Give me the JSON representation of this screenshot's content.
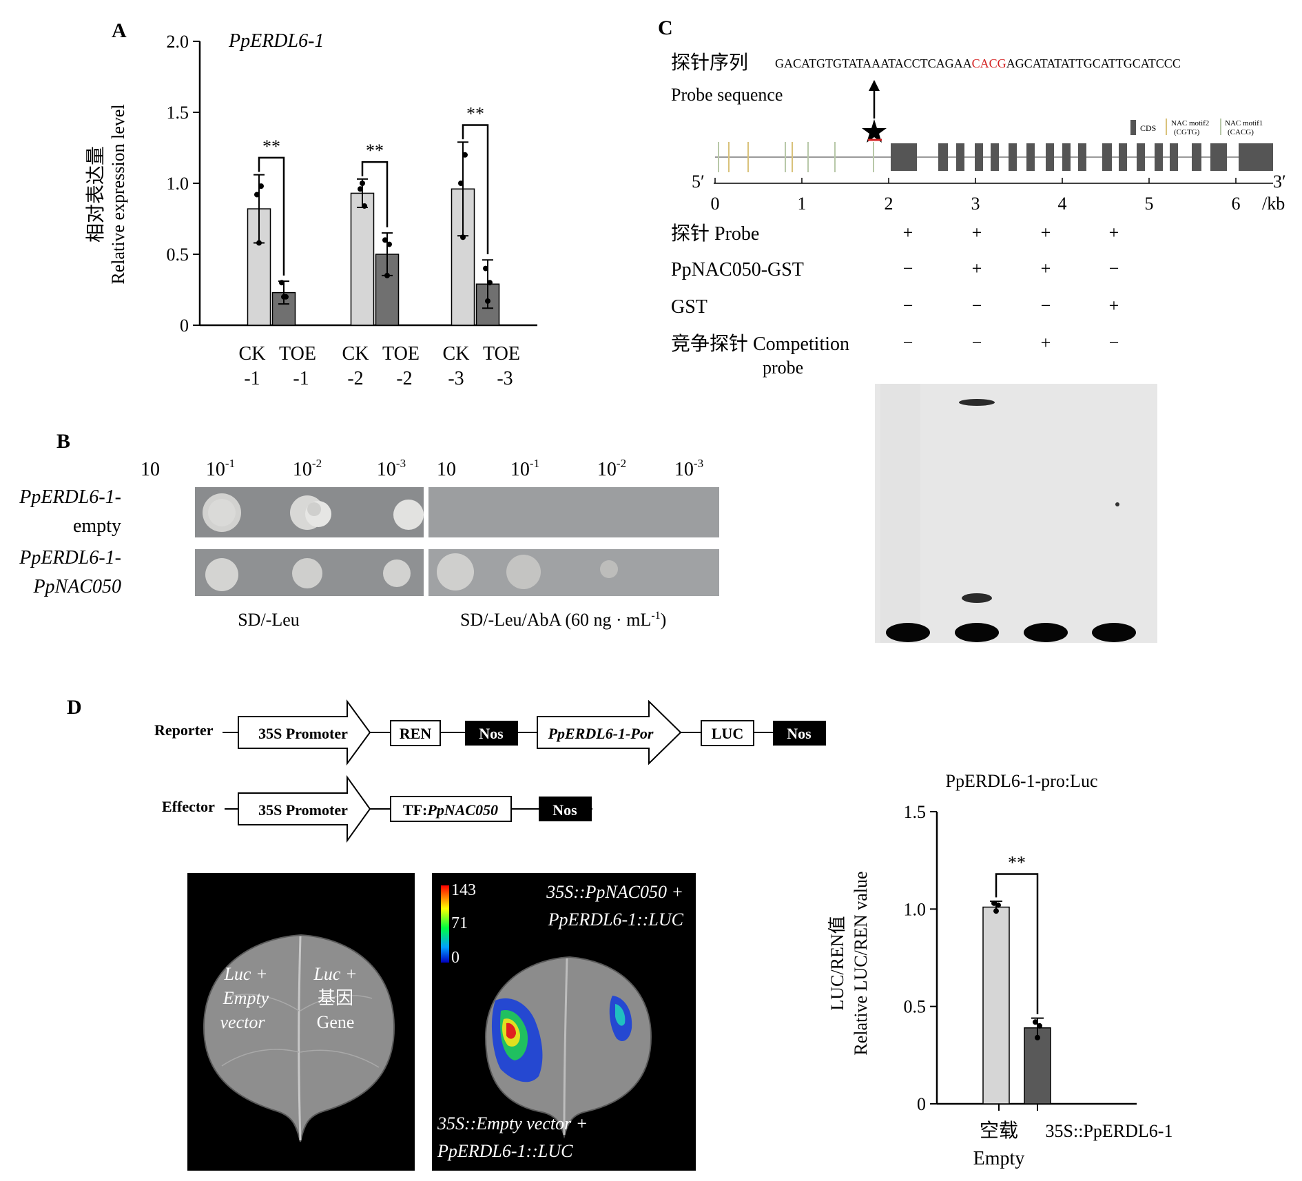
{
  "panels": {
    "A": {
      "letter": "A",
      "gene_label": "PpERDL6-1",
      "ylabel_cn": "相对表达量",
      "ylabel_en": "Relative expression level",
      "significance": "**",
      "groups": [
        {
          "ck_line1": "CK",
          "ck_line2": "-1",
          "toe_line1": "TOE",
          "toe_line2": "-1"
        },
        {
          "ck_line1": "CK",
          "ck_line2": "-2",
          "toe_line1": "TOE",
          "toe_line2": "-2"
        },
        {
          "ck_line1": "CK",
          "ck_line2": "-3",
          "toe_line1": "TOE",
          "toe_line2": "-3"
        }
      ]
    },
    "B": {
      "letter": "B",
      "dilutions_left": [
        "10",
        "10",
        "10",
        "10"
      ],
      "dilution_exps_left": [
        "",
        "-1",
        "-2",
        "-3"
      ],
      "dilutions_right": [
        "10",
        "10",
        "10",
        "10"
      ],
      "dilution_exps_right": [
        "",
        "-1",
        "-2",
        "-3"
      ],
      "row1_line1": "PpERDL6-1-",
      "row1_line2": "empty",
      "row2_line1": "PpERDL6-1-",
      "row2_line2": "PpNAC050",
      "medium_left": "SD/-Leu",
      "medium_right_main": "SD/-Leu/AbA (60 ng · mL",
      "medium_right_exp": "-1",
      "medium_right_close": ")"
    },
    "C": {
      "letter": "C",
      "probe_cn": "探针序列",
      "probe_en": "Probe sequence",
      "sequence_pre": "GACATGTGTATAAATACCTCAGAA",
      "sequence_motif": "CACG",
      "sequence_post": "AGCATATATTGCATTGCATCCC",
      "legend_cds": "CDS",
      "legend_motif2": "NAC motif2",
      "legend_motif2_seq": "(CGTG)",
      "legend_motif1": "NAC motif1",
      "legend_motif1_seq": "(CACG)",
      "end5": "5′",
      "end3": "3′",
      "scale_ticks": [
        "0",
        "1",
        "2",
        "3",
        "4",
        "5",
        "6"
      ],
      "scale_unit": "/kb",
      "rows": [
        {
          "label": "探针 Probe",
          "label2": "",
          "signs": [
            "+",
            "+",
            "+",
            "+"
          ]
        },
        {
          "label": "PpNAC050-GST",
          "label2": "",
          "signs": [
            "−",
            "+",
            "+",
            "−"
          ]
        },
        {
          "label": "GST",
          "label2": "",
          "signs": [
            "−",
            "−",
            "−",
            "+"
          ]
        },
        {
          "label": "竞争探针 Competition",
          "label2": "probe",
          "signs": [
            "−",
            "−",
            "+",
            "−"
          ]
        }
      ]
    },
    "D": {
      "letter": "D",
      "reporter_label": "Reporter",
      "effector_label": "Effector",
      "promoter": "35S Promoter",
      "ren": "REN",
      "nos": "Nos",
      "ppr_promoter": "PpERDL6-1-Por",
      "luc": "LUC",
      "tf_prefix": "TF:",
      "tf_name": "PpNAC050",
      "leaf1_left_l1": "Luc +",
      "leaf1_left_l2": "Empty",
      "leaf1_left_l3": "vector",
      "leaf1_right_l1": "Luc +",
      "leaf1_right_l2": "基因",
      "leaf1_right_l3": "Gene",
      "scale_max": "143",
      "scale_mid": "71",
      "scale_min": "0",
      "leaf2_top_l1": "35S::PpNAC050 +",
      "leaf2_top_l2": "PpERDL6-1::LUC",
      "leaf2_bottom_l1": "35S::Empty vector +",
      "leaf2_bottom_l2": "PpERDL6-1::LUC",
      "chart_title": "PpERDL6-1-pro:Luc",
      "ylabel_cn": "LUC/REN值",
      "ylabel_en": "Relative LUC/REN value",
      "significance": "**",
      "cat1_cn": "空载",
      "cat1_en": "Empty",
      "cat2": "35S::PpERDL6-1"
    }
  },
  "chart_data": [
    {
      "type": "bar",
      "panel": "A",
      "title": "PpERDL6-1",
      "ylabel": "相对表达量 Relative expression level",
      "ylim": [
        0,
        2.0
      ],
      "yticks": [
        "0",
        "0.5",
        "1.0",
        "1.5",
        "2.0"
      ],
      "categories": [
        "CK-1",
        "TOE-1",
        "CK-2",
        "TOE-2",
        "CK-3",
        "TOE-3"
      ],
      "values": [
        0.82,
        0.23,
        0.93,
        0.5,
        0.96,
        0.29
      ],
      "errors": [
        0.24,
        0.08,
        0.1,
        0.15,
        0.33,
        0.17
      ],
      "points": [
        [
          0.92,
          0.58,
          0.98
        ],
        [
          0.3,
          0.2,
          0.2
        ],
        [
          0.96,
          1.0,
          0.84
        ],
        [
          0.6,
          0.35,
          0.57
        ],
        [
          1.0,
          0.62,
          1.2
        ],
        [
          0.4,
          0.17,
          0.3
        ]
      ],
      "colors": [
        "#d6d6d6",
        "#707070",
        "#d6d6d6",
        "#707070",
        "#d6d6d6",
        "#707070"
      ],
      "significance": [
        "**",
        "**",
        "**"
      ]
    },
    {
      "type": "bar",
      "panel": "D",
      "title": "PpERDL6-1-pro:Luc",
      "ylabel": "LUC/REN值 Relative LUC/REN value",
      "ylim": [
        0,
        1.5
      ],
      "yticks": [
        "0",
        "0.5",
        "1.0",
        "1.5"
      ],
      "categories": [
        "空载 Empty",
        "35S::PpERDL6-1"
      ],
      "values": [
        1.01,
        0.39
      ],
      "errors": [
        0.03,
        0.05
      ],
      "points": [
        [
          1.03,
          0.99,
          1.02
        ],
        [
          0.42,
          0.34,
          0.4
        ]
      ],
      "colors": [
        "#d6d6d6",
        "#595959"
      ],
      "significance": [
        "**"
      ]
    }
  ]
}
